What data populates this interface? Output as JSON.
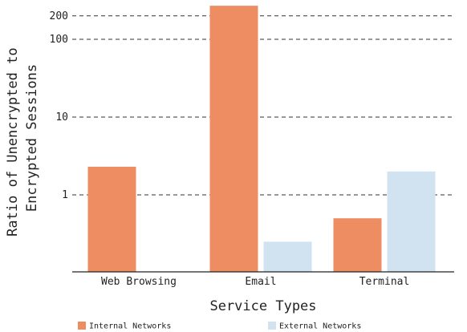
{
  "chart_data": {
    "type": "bar",
    "categories": [
      "Web Browsing",
      "Email",
      "Terminal"
    ],
    "series": [
      {
        "name": "Internal Networks",
        "values": [
          2.3,
          270,
          0.5
        ],
        "color": "#ee8c62"
      },
      {
        "name": "External Networks",
        "values": [
          null,
          0.25,
          2.0
        ],
        "color": "#d1e3f1"
      }
    ],
    "xlabel": "Service Types",
    "ylabel": [
      "Ratio of Unencrypted to",
      "Encrypted Sessions"
    ],
    "yscale": "log",
    "ylim": [
      0.1,
      270
    ],
    "yticks": [
      1,
      10,
      100,
      200
    ],
    "ytick_labels": [
      "1",
      "10",
      "100",
      "200"
    ],
    "grid": "horizontal dashed",
    "legend_position": "bottom"
  }
}
